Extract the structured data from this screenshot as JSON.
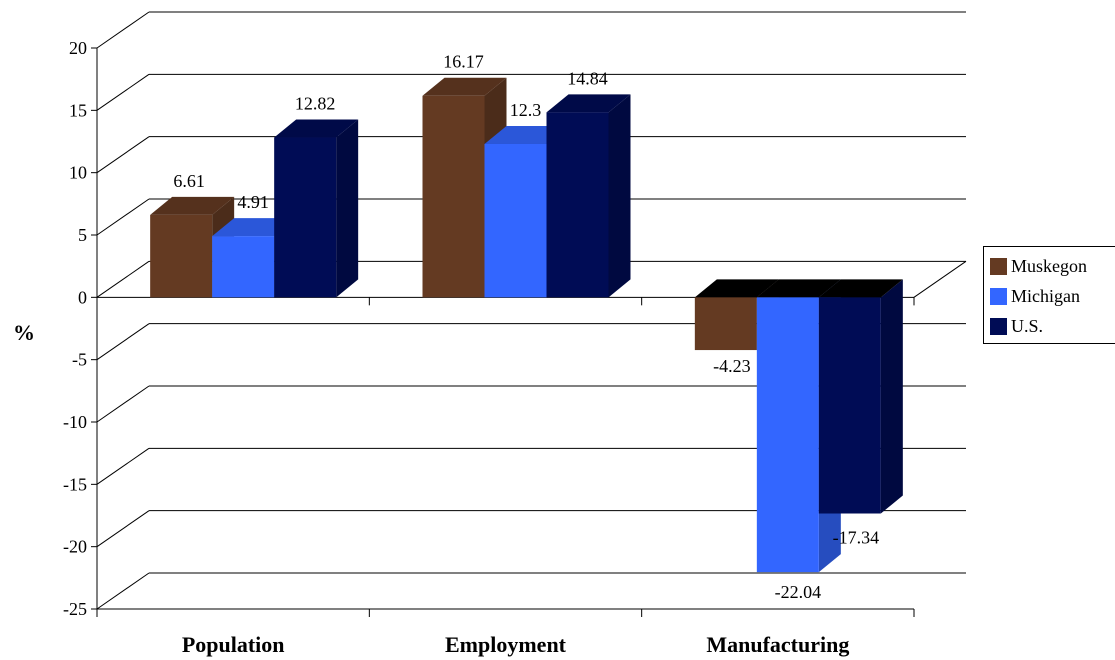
{
  "chart_data": {
    "type": "bar",
    "categories": [
      "Population",
      "Employment",
      "Manufacturing"
    ],
    "series": [
      {
        "name": "Muskegon",
        "color": "#643a22",
        "values": [
          6.61,
          16.17,
          -4.23
        ]
      },
      {
        "name": "Michigan",
        "color": "#3366ff",
        "values": [
          4.91,
          12.3,
          -22.04
        ]
      },
      {
        "name": "U.S.",
        "color": "#000c55",
        "values": [
          12.82,
          14.84,
          -17.34
        ]
      }
    ],
    "data_labels": [
      [
        "6.61",
        "16.17",
        "-4.23"
      ],
      [
        "4.91",
        "12.3",
        "-22.04"
      ],
      [
        "12.82",
        "14.84",
        "-17.34"
      ]
    ],
    "ylabel": "%",
    "ylim": [
      -25,
      20
    ],
    "yticks": [
      "20",
      "15",
      "10",
      "5",
      "0",
      "-5",
      "-10",
      "-15",
      "-20",
      "-25"
    ],
    "grid": true,
    "legend_position": "right",
    "style": "3d-clustered"
  }
}
